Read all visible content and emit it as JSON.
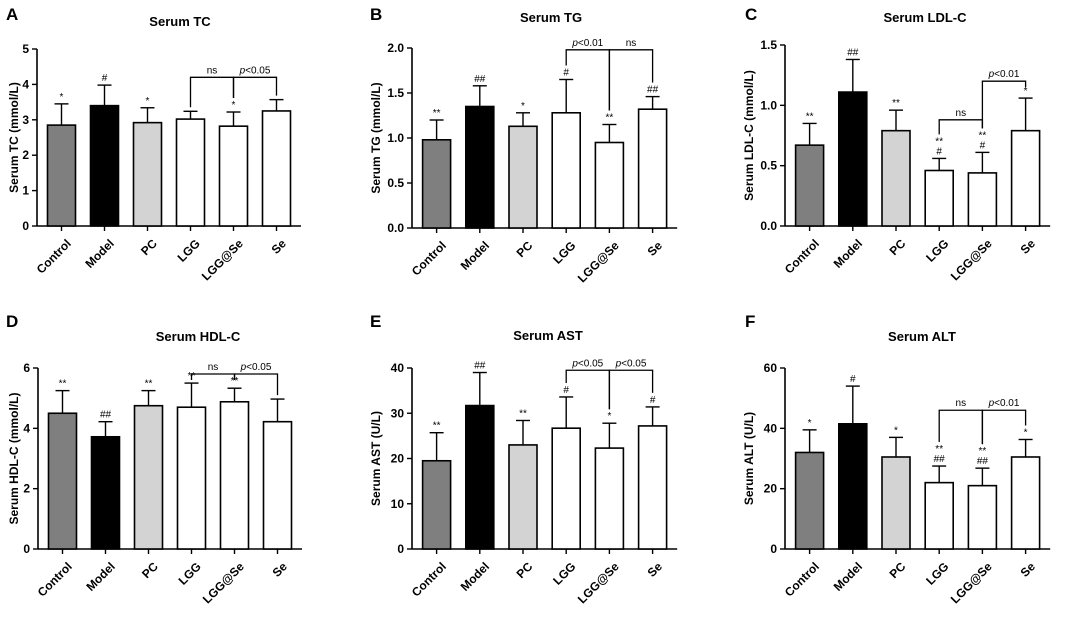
{
  "panels": [
    {
      "letter": "A",
      "chart_data": {
        "type": "bar",
        "title": "Serum TC",
        "ylabel": "Serum TC (mmol/L)",
        "ylim": [
          0,
          5
        ],
        "yticks": [
          "0",
          "1",
          "2",
          "3",
          "4",
          "5"
        ],
        "categories": [
          "Control",
          "Model",
          "PC",
          "LGG",
          "LGG@Se",
          "Se"
        ],
        "values": [
          2.85,
          3.4,
          2.92,
          3.02,
          2.82,
          3.25
        ],
        "errors": [
          0.6,
          0.58,
          0.42,
          0.22,
          0.4,
          0.32
        ],
        "bar_colors": [
          "#7f7f7f",
          "#000000",
          "#d3d3d3",
          "#ffffff",
          "#ffffff",
          "#ffffff"
        ],
        "labels": [
          [
            "*"
          ],
          [
            "#"
          ],
          [
            "*"
          ],
          [],
          [
            "*"
          ],
          []
        ],
        "comparisons": [
          {
            "from": 3,
            "to": 4,
            "text": "ns",
            "level": 4.2
          },
          {
            "from": 4,
            "to": 5,
            "text": "p<0.05",
            "level": 4.2
          }
        ]
      }
    },
    {
      "letter": "B",
      "chart_data": {
        "type": "bar",
        "title": "Serum TG",
        "ylabel": "Serum TG (mmol/L)",
        "ylim": [
          0,
          2
        ],
        "yticks": [
          "0.0",
          "0.5",
          "1.0",
          "1.5",
          "2.0"
        ],
        "categories": [
          "Control",
          "Model",
          "PC",
          "LGG",
          "LGG@Se",
          "Se"
        ],
        "values": [
          0.98,
          1.35,
          1.13,
          1.28,
          0.95,
          1.32
        ],
        "errors": [
          0.22,
          0.23,
          0.15,
          0.37,
          0.2,
          0.14
        ],
        "bar_colors": [
          "#7f7f7f",
          "#000000",
          "#d3d3d3",
          "#ffffff",
          "#ffffff",
          "#ffffff"
        ],
        "labels": [
          [
            "**"
          ],
          [
            "##"
          ],
          [
            "*"
          ],
          [
            "#"
          ],
          [
            "**"
          ],
          [
            "##"
          ]
        ],
        "comparisons": [
          {
            "from": 3,
            "to": 4,
            "text": "p<0.01",
            "level": 1.98
          },
          {
            "from": 4,
            "to": 5,
            "text": "ns",
            "level": 1.98
          }
        ]
      }
    },
    {
      "letter": "C",
      "chart_data": {
        "type": "bar",
        "title": "Serum LDL-C",
        "ylabel": "Serum LDL-C (mmol/L)",
        "ylim": [
          0,
          1.5
        ],
        "yticks": [
          "0.0",
          "0.5",
          "1.0",
          "1.5"
        ],
        "categories": [
          "Control",
          "Model",
          "PC",
          "LGG",
          "LGG@Se",
          "Se"
        ],
        "values": [
          0.67,
          1.11,
          0.79,
          0.46,
          0.44,
          0.79
        ],
        "errors": [
          0.18,
          0.27,
          0.17,
          0.1,
          0.17,
          0.27
        ],
        "bar_colors": [
          "#7f7f7f",
          "#000000",
          "#d3d3d3",
          "#ffffff",
          "#ffffff",
          "#ffffff"
        ],
        "labels": [
          [
            "**"
          ],
          [
            "##"
          ],
          [
            "**"
          ],
          [
            "**",
            "#"
          ],
          [
            "**",
            "#"
          ],
          [
            "*"
          ]
        ],
        "comparisons": [
          {
            "from": 3,
            "to": 4,
            "text": "ns",
            "level": 0.88
          },
          {
            "from": 4,
            "to": 5,
            "text": "p<0.01",
            "level": 1.2
          }
        ]
      }
    },
    {
      "letter": "D",
      "chart_data": {
        "type": "bar",
        "title": "Serum HDL-C",
        "ylabel": "Serum HDL-C (mmol/L)",
        "ylim": [
          0,
          6
        ],
        "yticks": [
          "0",
          "2",
          "4",
          "6"
        ],
        "categories": [
          "Control",
          "Model",
          "PC",
          "LGG",
          "LGG@Se",
          "Se"
        ],
        "values": [
          4.5,
          3.72,
          4.75,
          4.7,
          4.88,
          4.22
        ],
        "errors": [
          0.75,
          0.5,
          0.5,
          0.8,
          0.45,
          0.75
        ],
        "bar_colors": [
          "#7f7f7f",
          "#000000",
          "#d3d3d3",
          "#ffffff",
          "#ffffff",
          "#ffffff"
        ],
        "labels": [
          [
            "**"
          ],
          [
            "##"
          ],
          [
            "**"
          ],
          [
            "**"
          ],
          [
            "**"
          ],
          []
        ],
        "comparisons": [
          {
            "from": 3,
            "to": 4,
            "text": "ns",
            "level": 5.8
          },
          {
            "from": 4,
            "to": 5,
            "text": "p<0.05",
            "level": 5.8
          }
        ]
      }
    },
    {
      "letter": "E",
      "chart_data": {
        "type": "bar",
        "title": "Serum AST",
        "ylabel": "Serum AST (U/L)",
        "ylim": [
          0,
          40
        ],
        "yticks": [
          "0",
          "10",
          "20",
          "30",
          "40"
        ],
        "categories": [
          "Control",
          "Model",
          "PC",
          "LGG",
          "LGG@Se",
          "Se"
        ],
        "values": [
          19.5,
          31.7,
          23.0,
          26.7,
          22.3,
          27.2
        ],
        "errors": [
          6.2,
          7.3,
          5.4,
          6.9,
          5.5,
          4.2
        ],
        "bar_colors": [
          "#7f7f7f",
          "#000000",
          "#d3d3d3",
          "#ffffff",
          "#ffffff",
          "#ffffff"
        ],
        "labels": [
          [
            "**"
          ],
          [
            "##"
          ],
          [
            "**"
          ],
          [
            "#"
          ],
          [
            "*"
          ],
          [
            "#"
          ]
        ],
        "comparisons": [
          {
            "from": 3,
            "to": 4,
            "text": "p<0.05",
            "level": 39.5
          },
          {
            "from": 4,
            "to": 5,
            "text": "p<0.05",
            "level": 39.5
          }
        ]
      }
    },
    {
      "letter": "F",
      "chart_data": {
        "type": "bar",
        "title": "Serum ALT",
        "ylabel": "Serum ALT (U/L)",
        "ylim": [
          0,
          60
        ],
        "yticks": [
          "0",
          "20",
          "40",
          "60"
        ],
        "categories": [
          "Control",
          "Model",
          "PC",
          "LGG",
          "LGG@Se",
          "Se"
        ],
        "values": [
          32,
          41.5,
          30.5,
          22,
          21,
          30.5
        ],
        "errors": [
          7.5,
          12.5,
          6.5,
          5.5,
          5.8,
          5.8
        ],
        "bar_colors": [
          "#7f7f7f",
          "#000000",
          "#d3d3d3",
          "#ffffff",
          "#ffffff",
          "#ffffff"
        ],
        "labels": [
          [
            "*"
          ],
          [
            "#"
          ],
          [
            "*"
          ],
          [
            "**",
            "##"
          ],
          [
            "**",
            "##"
          ],
          [
            "*"
          ]
        ],
        "comparisons": [
          {
            "from": 3,
            "to": 4,
            "text": "ns",
            "level": 46
          },
          {
            "from": 4,
            "to": 5,
            "text": "p<0.01",
            "level": 46
          }
        ]
      }
    }
  ]
}
